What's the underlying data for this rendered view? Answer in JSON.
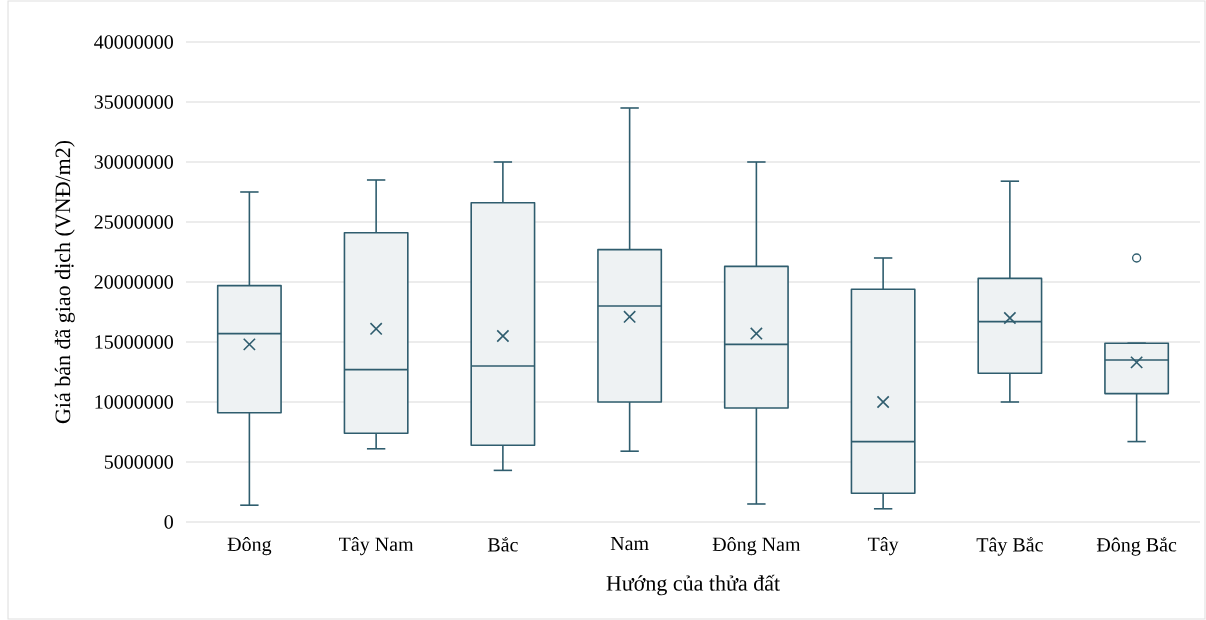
{
  "chart_data": {
    "type": "box",
    "xlabel": "Hướng của thửa đất",
    "ylabel": "Giá bán đã giao dịch (VNĐ/m2)",
    "categories": [
      "Đông",
      "Tây Nam",
      "Bắc",
      "Nam",
      "Đông Nam",
      "Tây",
      "Tây Bắc",
      "Đông Bắc"
    ],
    "color": "#2f5d6e",
    "boxes": [
      {
        "low": 1400000,
        "q1": 9100000,
        "median": 15700000,
        "q3": 19700000,
        "high": 27500000,
        "mean": 14800000
      },
      {
        "low": 6100000,
        "q1": 7400000,
        "median": 12700000,
        "q3": 24100000,
        "high": 28500000,
        "mean": 16100000
      },
      {
        "low": 4300000,
        "q1": 6400000,
        "median": 13000000,
        "q3": 26600000,
        "high": 30000000,
        "mean": 15500000
      },
      {
        "low": 5900000,
        "q1": 10000000,
        "median": 18000000,
        "q3": 22700000,
        "high": 34500000,
        "mean": 17100000
      },
      {
        "low": 1500000,
        "q1": 9500000,
        "median": 14800000,
        "q3": 21300000,
        "high": 30000000,
        "mean": 15700000
      },
      {
        "low": 1100000,
        "q1": 2400000,
        "median": 6700000,
        "q3": 19400000,
        "high": 22000000,
        "mean": 10000000
      },
      {
        "low": 10000000,
        "q1": 12400000,
        "median": 16700000,
        "q3": 20300000,
        "high": 28400000,
        "mean": 17000000
      },
      {
        "low": 6700000,
        "q1": 10700000,
        "median": 13500000,
        "q3": 14900000,
        "high": 14900000,
        "mean": 13300000,
        "outliers": [
          22000000
        ]
      }
    ],
    "ylim": [
      0,
      40000000
    ],
    "yticks": [
      0,
      5000000,
      10000000,
      15000000,
      20000000,
      25000000,
      30000000,
      35000000,
      40000000
    ],
    "grid": "y"
  }
}
